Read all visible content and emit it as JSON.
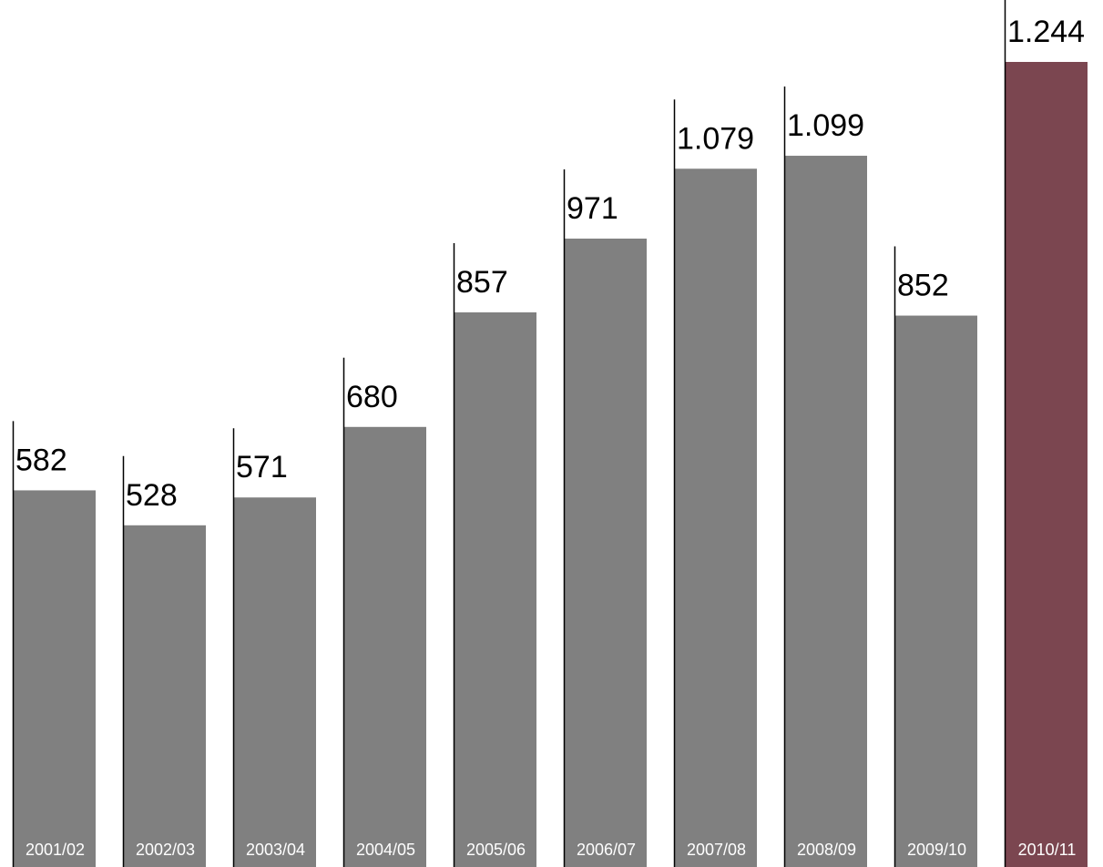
{
  "chart_data": {
    "type": "bar",
    "categories": [
      "2001/02",
      "2002/03",
      "2003/04",
      "2004/05",
      "2005/06",
      "2006/07",
      "2007/08",
      "2008/09",
      "2009/10",
      "2010/11"
    ],
    "values": [
      582,
      528,
      571,
      680,
      857,
      971,
      1079,
      1099,
      852,
      1244
    ],
    "value_labels": [
      "582",
      "528",
      "571",
      "680",
      "857",
      "971",
      "1.079",
      "1.099",
      "852",
      "1.244"
    ],
    "title": "",
    "xlabel": "",
    "ylabel": "",
    "ylim": [
      0,
      1244
    ],
    "grid": false,
    "legend": "none",
    "colors": {
      "default": "#808080",
      "highlight": "#7b4650",
      "leader_line": "#000000",
      "value_text": "#000000",
      "category_text": "#ffffff"
    },
    "highlight_index": 9
  }
}
